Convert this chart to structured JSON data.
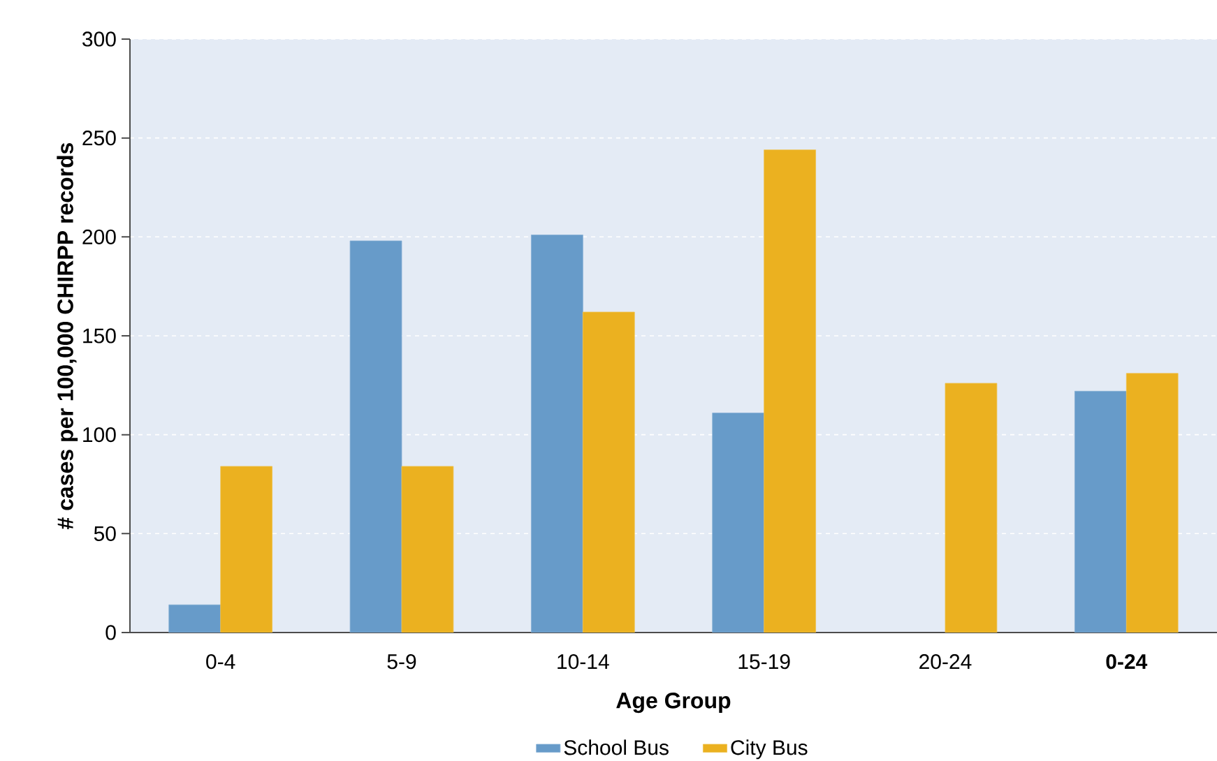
{
  "chart_data": {
    "type": "bar",
    "xlabel": "Age Group",
    "ylabel": "# cases per 100,000 CHIRPP records",
    "categories": [
      "0-4",
      "5-9",
      "10-14",
      "15-19",
      "20-24",
      "**0-24**"
    ],
    "series": [
      {
        "name": "School Bus",
        "color": "#679bc9",
        "values": [
          14,
          198,
          201,
          111,
          null,
          122
        ]
      },
      {
        "name": "City Bus",
        "color": "#ebb120",
        "values": [
          84,
          84,
          162,
          244,
          126,
          131
        ]
      }
    ],
    "ylim": [
      0,
      300
    ],
    "yticks": [
      0,
      50,
      100,
      150,
      200,
      250,
      300
    ],
    "grid": "y",
    "legend": "bottom"
  }
}
